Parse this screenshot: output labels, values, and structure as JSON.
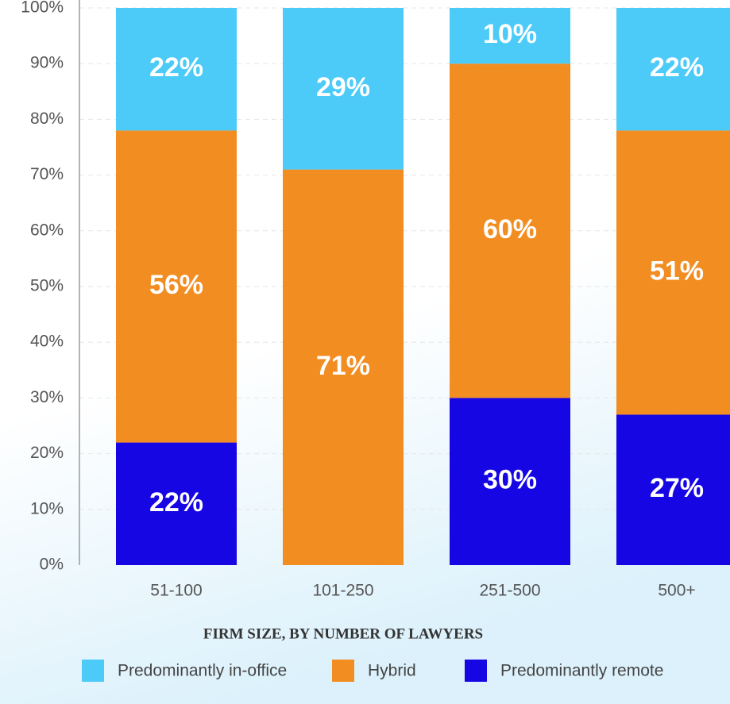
{
  "chart_data": {
    "type": "stacked_bar",
    "x_label": "FIRM SIZE, BY NUMBER OF LAWYERS",
    "categories": [
      "51-100",
      "101-250",
      "251-500",
      "500+"
    ],
    "series": [
      {
        "name": "Predominantly in-office",
        "color": "#4ccbf8",
        "values": [
          22,
          29,
          10,
          22
        ],
        "value_labels": [
          "22%",
          "29%",
          "10%",
          "22%"
        ]
      },
      {
        "name": "Hybrid",
        "color": "#f28d22",
        "values": [
          56,
          71,
          60,
          51
        ],
        "value_labels": [
          "56%",
          "71%",
          "60%",
          "51%"
        ]
      },
      {
        "name": "Predominantly remote",
        "color": "#1606e4",
        "values": [
          22,
          0,
          30,
          27
        ],
        "value_labels": [
          "22%",
          null,
          "30%",
          "27%"
        ]
      }
    ],
    "ylim": [
      0,
      100
    ],
    "yticks": [
      {
        "value": 0,
        "label": "0%"
      },
      {
        "value": 10,
        "label": "10%"
      },
      {
        "value": 20,
        "label": "20%"
      },
      {
        "value": 30,
        "label": "30%"
      },
      {
        "value": 40,
        "label": "40%"
      },
      {
        "value": 50,
        "label": "50%"
      },
      {
        "value": 60,
        "label": "60%"
      },
      {
        "value": 70,
        "label": "70%"
      },
      {
        "value": 80,
        "label": "80%"
      },
      {
        "value": 90,
        "label": "90%"
      },
      {
        "value": 100,
        "label": "100%"
      }
    ],
    "grid": true
  }
}
